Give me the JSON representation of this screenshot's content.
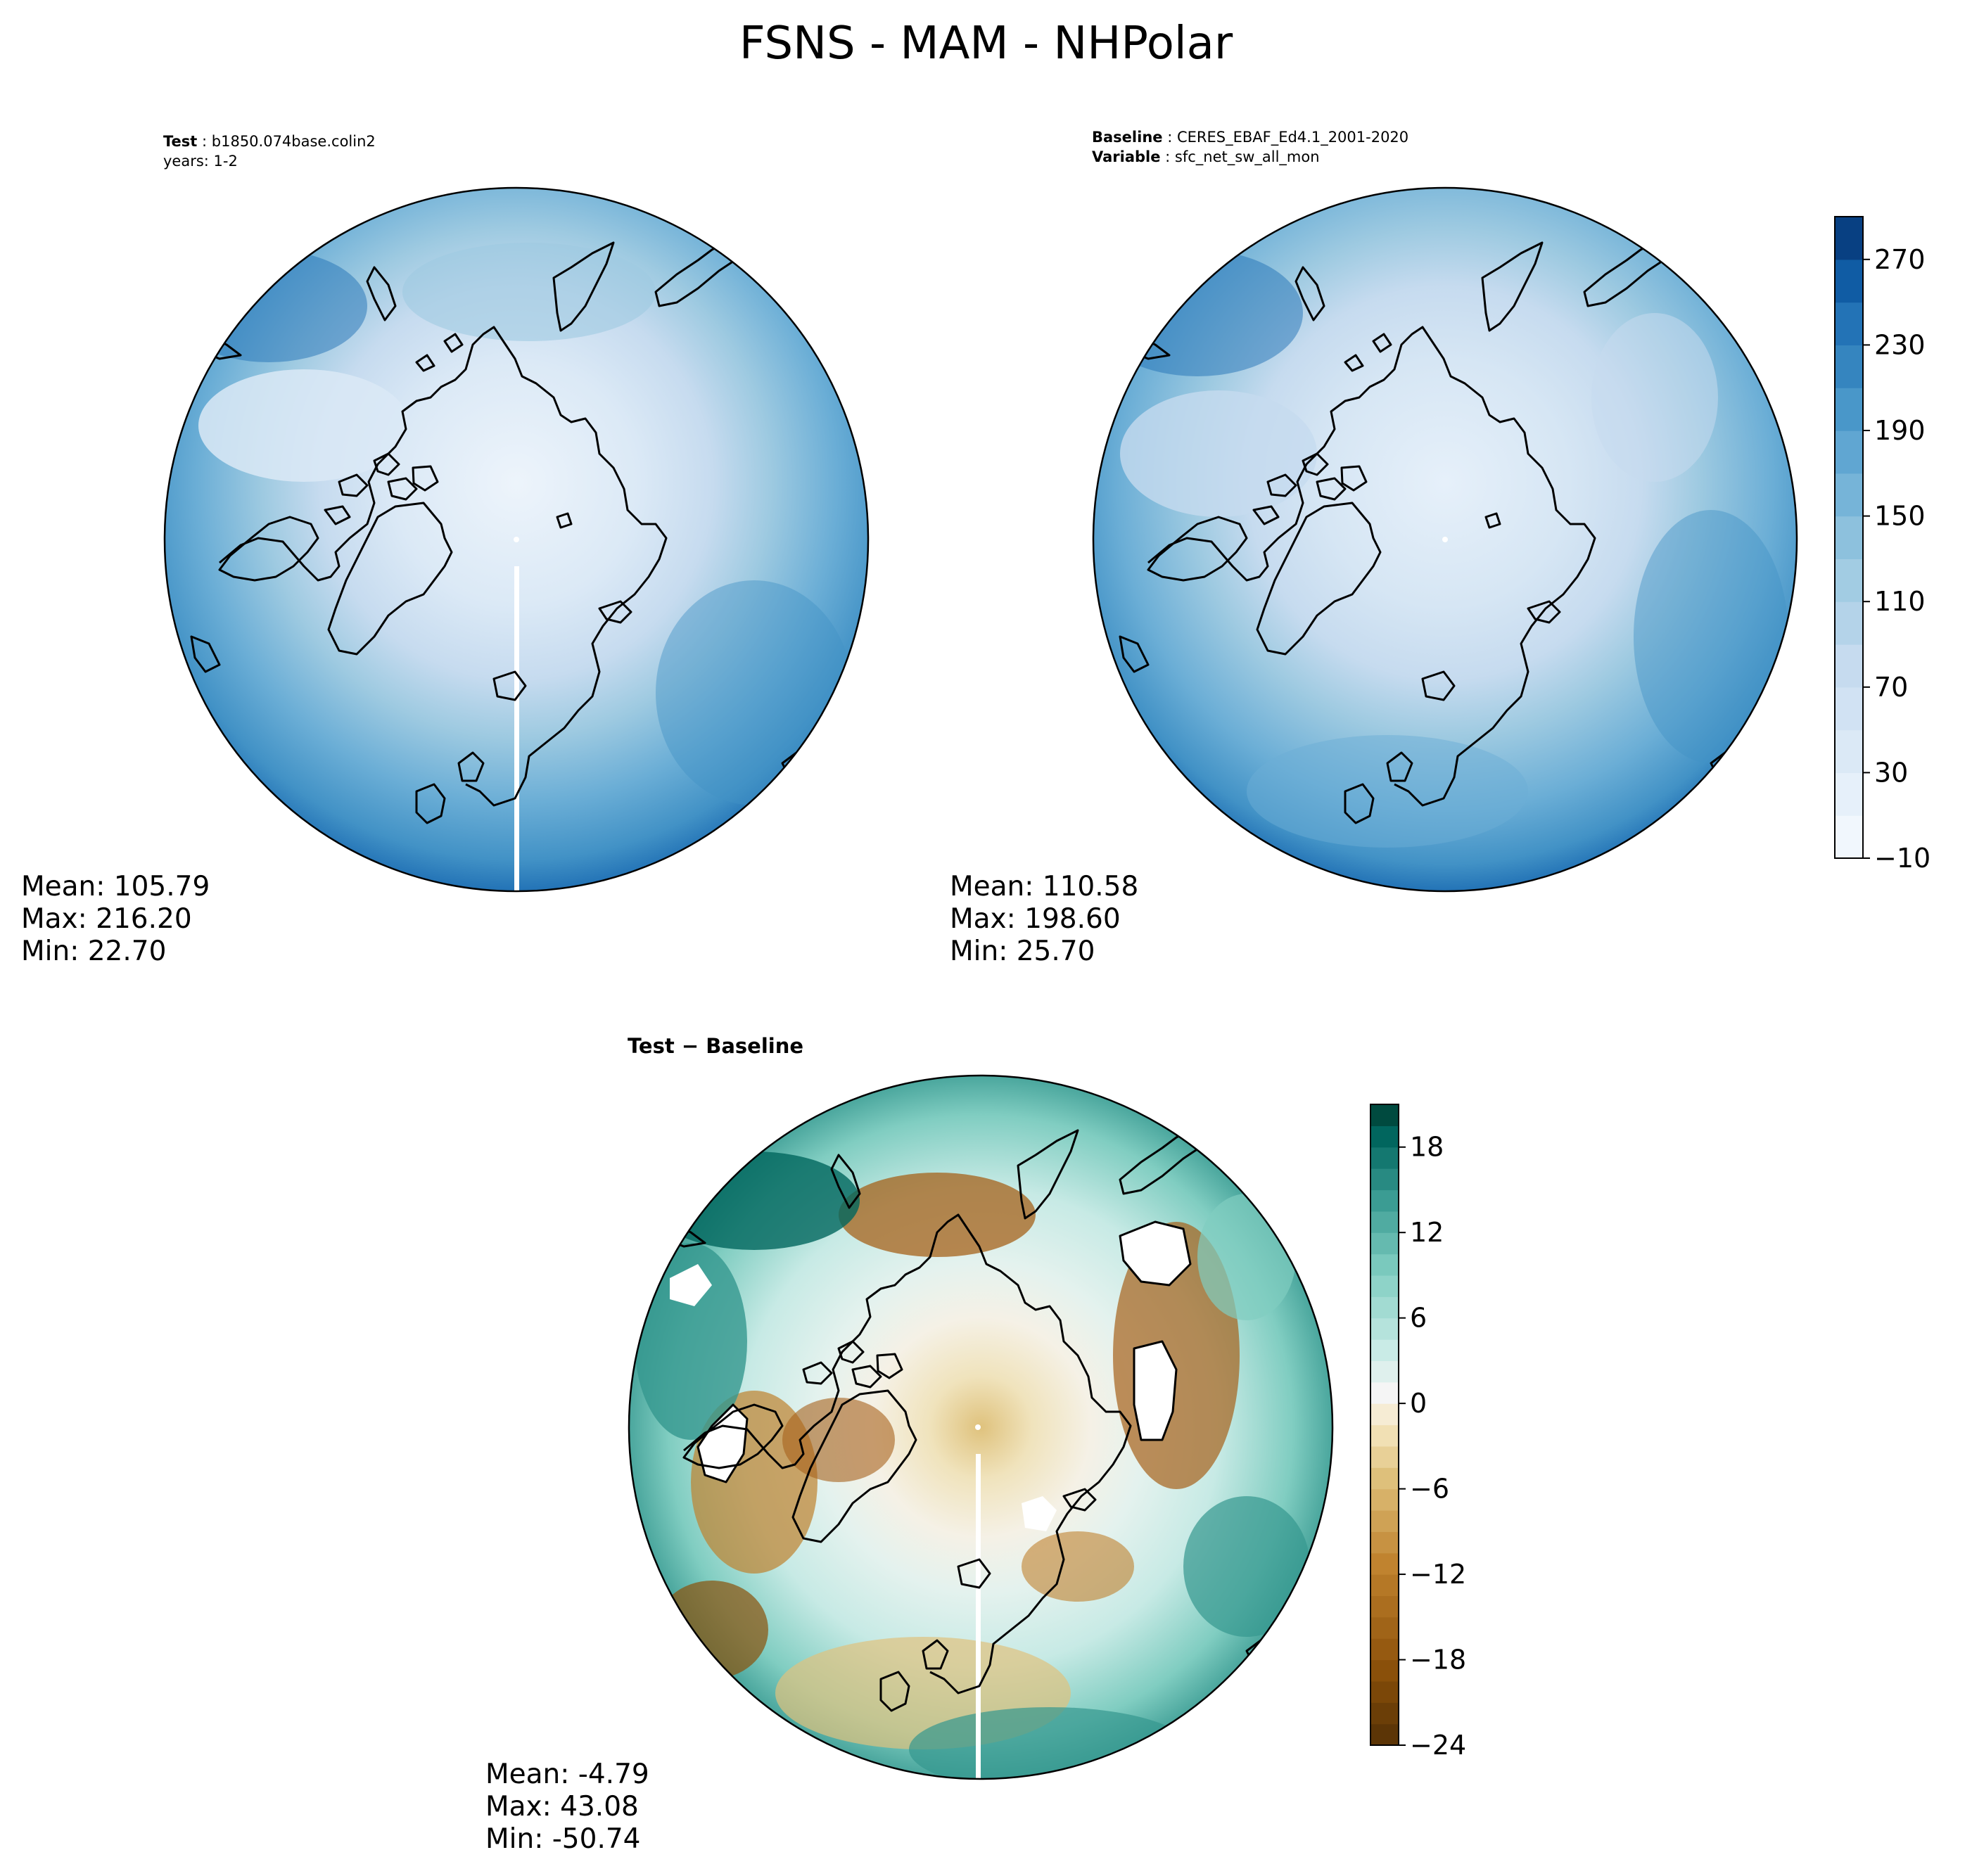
{
  "title": "FSNS - MAM - NHPolar",
  "panels": {
    "test": {
      "header_label": "Test",
      "header_value": "b1850.074base.colin2",
      "header_line2": "years: 1-2",
      "mean": "Mean: 105.79",
      "max": "Max: 216.20",
      "min": "Min: 22.70"
    },
    "baseline": {
      "header_label": "Baseline",
      "header_value": "CERES_EBAF_Ed4.1_2001-2020",
      "header_label2": "Variable",
      "header_value2": "sfc_net_sw_all_mon",
      "mean": "Mean: 110.58",
      "max": "Max: 198.60",
      "min": "Min: 25.70"
    },
    "diff": {
      "title": "Test − Baseline",
      "mean": "Mean: -4.79",
      "max": "Max: 43.08",
      "min": "Min: -50.74"
    }
  },
  "chart_data": [
    {
      "type": "heatmap",
      "projection": "north-polar-stereographic",
      "panel": "test",
      "colormap": "Blues",
      "colorbar": {
        "min": -10,
        "max": 290,
        "step": 20,
        "ticks": [
          -10,
          30,
          70,
          110,
          150,
          190,
          230,
          270
        ],
        "tick_labels": [
          "−10",
          "30",
          "70",
          "110",
          "150",
          "190",
          "230",
          "270"
        ]
      },
      "stats": {
        "mean": 105.79,
        "max": 216.2,
        "min": 22.7
      }
    },
    {
      "type": "heatmap",
      "projection": "north-polar-stereographic",
      "panel": "baseline",
      "colormap": "Blues",
      "stats": {
        "mean": 110.58,
        "max": 198.6,
        "min": 25.7
      }
    },
    {
      "type": "heatmap",
      "projection": "north-polar-stereographic",
      "panel": "diff",
      "colormap": "BrBG",
      "colorbar": {
        "min": -24,
        "max": 21,
        "step": 1.5,
        "ticks": [
          -24,
          -18,
          -12,
          -6,
          0,
          6,
          12,
          18
        ],
        "tick_labels": [
          "−24",
          "−18",
          "−12",
          "−6",
          "0",
          "6",
          "12",
          "18"
        ]
      },
      "stats": {
        "mean": -4.79,
        "max": 43.08,
        "min": -50.74
      }
    }
  ],
  "colors": {
    "blues_light": "#f7fbff",
    "blues_mid": "#6baed6",
    "blues_dark": "#08306b",
    "brbg_brown": "#8c510a",
    "brbg_white": "#f5f5f5",
    "brbg_teal": "#01665e"
  }
}
